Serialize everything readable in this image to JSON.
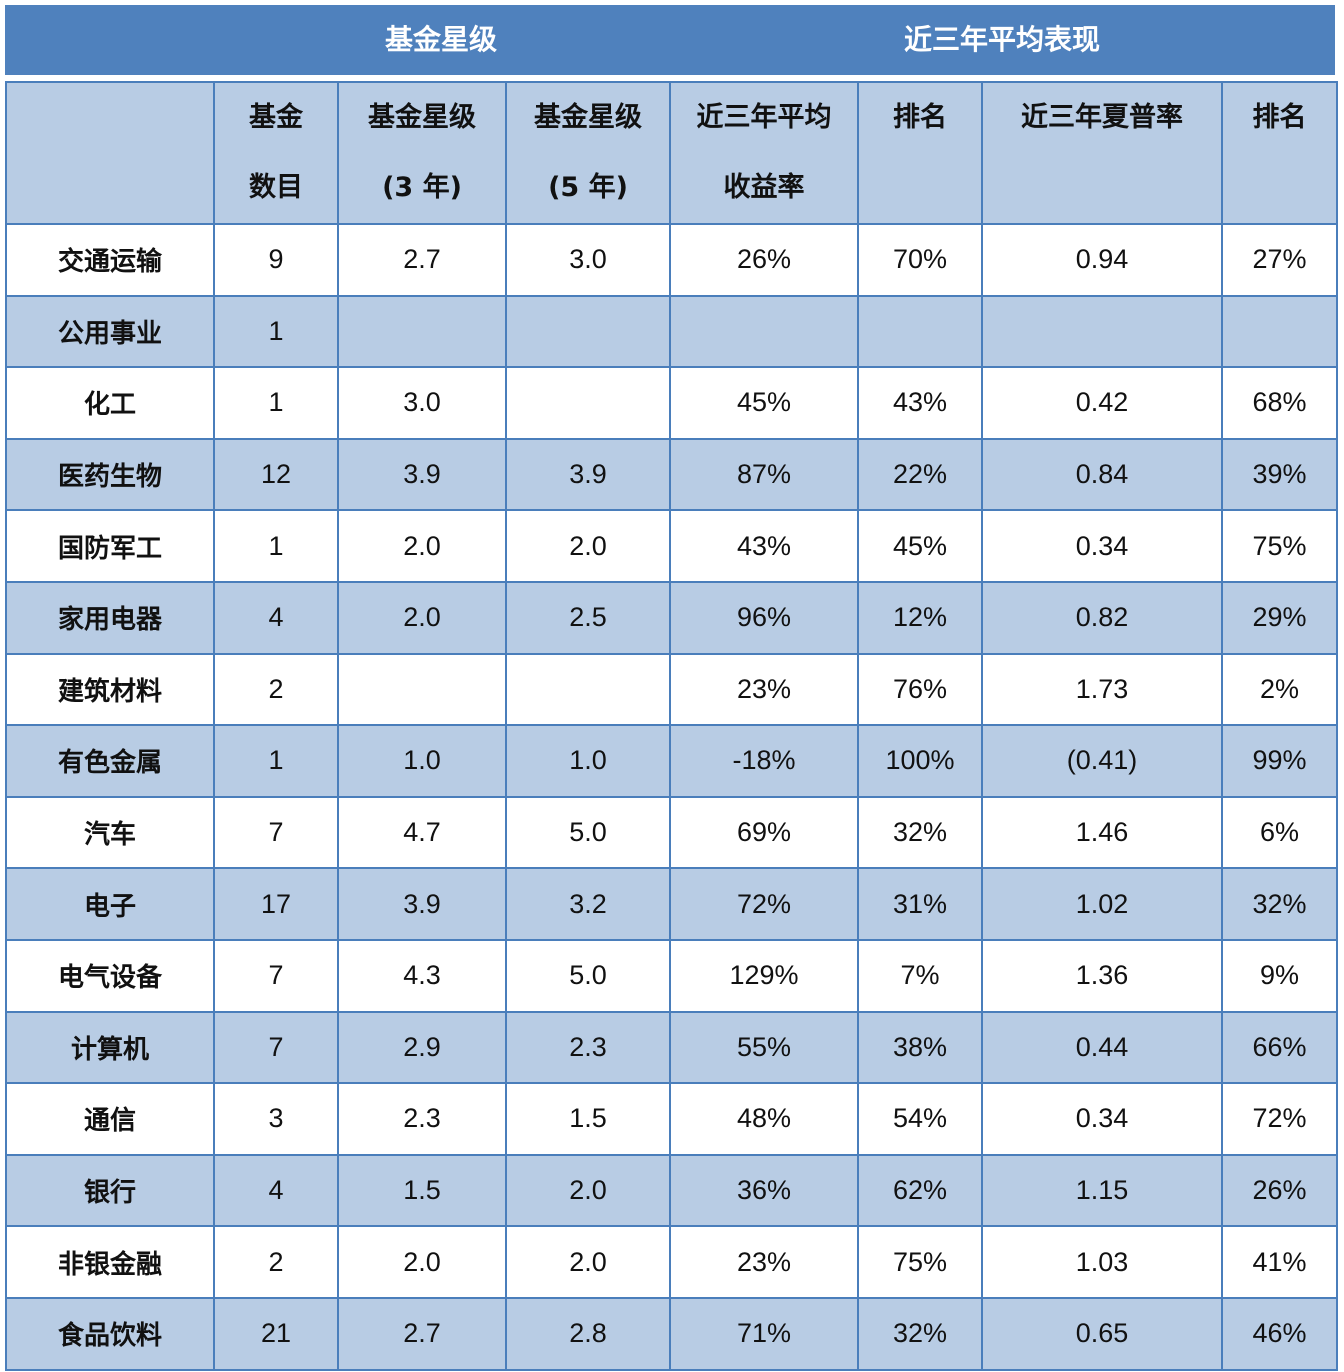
{
  "colors": {
    "band": "#4f81bd",
    "header": "#b8cce4",
    "alt_row": "#b8cce4",
    "border": "#4a7ebb"
  },
  "group_headers": [
    "基金星级",
    "近三年平均表现"
  ],
  "columns": [
    {
      "line1": "",
      "line2": ""
    },
    {
      "line1": "基金",
      "line2": "数目"
    },
    {
      "line1": "基金星级",
      "line2": "(3 年)"
    },
    {
      "line1": "基金星级",
      "line2": "(5 年)"
    },
    {
      "line1": "近三年平均",
      "line2": "收益率"
    },
    {
      "line1": "排名",
      "line2": ""
    },
    {
      "line1": "近三年夏普率",
      "line2": ""
    },
    {
      "line1": "排名",
      "line2": ""
    }
  ],
  "rows": [
    [
      "交通运输",
      "9",
      "2.7",
      "3.0",
      "26%",
      "70%",
      "0.94",
      "27%"
    ],
    [
      "公用事业",
      "1",
      "",
      "",
      "",
      "",
      "",
      ""
    ],
    [
      "化工",
      "1",
      "3.0",
      "",
      "45%",
      "43%",
      "0.42",
      "68%"
    ],
    [
      "医药生物",
      "12",
      "3.9",
      "3.9",
      "87%",
      "22%",
      "0.84",
      "39%"
    ],
    [
      "国防军工",
      "1",
      "2.0",
      "2.0",
      "43%",
      "45%",
      "0.34",
      "75%"
    ],
    [
      "家用电器",
      "4",
      "2.0",
      "2.5",
      "96%",
      "12%",
      "0.82",
      "29%"
    ],
    [
      "建筑材料",
      "2",
      "",
      "",
      "23%",
      "76%",
      "1.73",
      "2%"
    ],
    [
      "有色金属",
      "1",
      "1.0",
      "1.0",
      "-18%",
      "100%",
      "(0.41)",
      "99%"
    ],
    [
      "汽车",
      "7",
      "4.7",
      "5.0",
      "69%",
      "32%",
      "1.46",
      "6%"
    ],
    [
      "电子",
      "17",
      "3.9",
      "3.2",
      "72%",
      "31%",
      "1.02",
      "32%"
    ],
    [
      "电气设备",
      "7",
      "4.3",
      "5.0",
      "129%",
      "7%",
      "1.36",
      "9%"
    ],
    [
      "计算机",
      "7",
      "2.9",
      "2.3",
      "55%",
      "38%",
      "0.44",
      "66%"
    ],
    [
      "通信",
      "3",
      "2.3",
      "1.5",
      "48%",
      "54%",
      "0.34",
      "72%"
    ],
    [
      "银行",
      "4",
      "1.5",
      "2.0",
      "36%",
      "62%",
      "1.15",
      "26%"
    ],
    [
      "非银金融",
      "2",
      "2.0",
      "2.0",
      "23%",
      "75%",
      "1.03",
      "41%"
    ],
    [
      "食品饮料",
      "21",
      "2.7",
      "2.8",
      "71%",
      "32%",
      "0.65",
      "46%"
    ]
  ]
}
